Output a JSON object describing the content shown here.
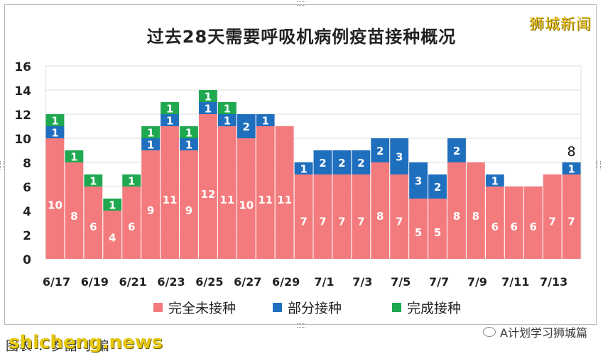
{
  "chart_data": {
    "type": "bar",
    "title": "过去28天需要呼吸机病例疫苗接种概况",
    "ylim": [
      0,
      16
    ],
    "yticks": [
      0,
      2,
      4,
      6,
      8,
      10,
      12,
      14,
      16
    ],
    "categories": [
      "6/17",
      "6/18",
      "6/19",
      "6/20",
      "6/21",
      "6/22",
      "6/23",
      "6/24",
      "6/25",
      "6/26",
      "6/27",
      "6/28",
      "6/29",
      "6/30",
      "7/1",
      "7/2",
      "7/3",
      "7/4",
      "7/5",
      "7/6",
      "7/7",
      "7/8",
      "7/9",
      "7/10",
      "7/11",
      "7/12",
      "7/13",
      "7/14"
    ],
    "xtick_labels": [
      "6/17",
      "",
      "6/19",
      "",
      "6/21",
      "",
      "6/23",
      "",
      "6/25",
      "",
      "6/27",
      "",
      "6/29",
      "",
      "7/1",
      "",
      "7/3",
      "",
      "7/5",
      "",
      "7/7",
      "",
      "7/9",
      "",
      "7/11",
      "",
      "7/13",
      ""
    ],
    "series": [
      {
        "name": "完全未接种",
        "color": "#f47b7d",
        "values": [
          10,
          8,
          6,
          4,
          6,
          9,
          11,
          9,
          12,
          11,
          10,
          11,
          11,
          7,
          7,
          7,
          7,
          8,
          7,
          5,
          5,
          8,
          8,
          6,
          6,
          6,
          7,
          7
        ]
      },
      {
        "name": "部分接种",
        "color": "#1f6fbf",
        "values": [
          1,
          0,
          0,
          0,
          0,
          1,
          1,
          1,
          1,
          1,
          2,
          1,
          0,
          1,
          2,
          2,
          2,
          2,
          3,
          3,
          2,
          2,
          0,
          1,
          0,
          0,
          0,
          1
        ]
      },
      {
        "name": "完成接种",
        "color": "#1fa84f",
        "values": [
          1,
          1,
          1,
          1,
          1,
          1,
          1,
          1,
          1,
          1,
          0,
          0,
          0,
          0,
          0,
          0,
          0,
          0,
          0,
          0,
          0,
          0,
          0,
          0,
          0,
          0,
          0,
          0
        ]
      }
    ],
    "annotations": [
      {
        "category": "7/14",
        "text": "8"
      }
    ],
    "grid": true,
    "legend_position": "bottom"
  },
  "brand": "狮城新闻",
  "wechat_account": "A计划学习狮城篇",
  "bottom_text": "图表 ：岁韶·小编",
  "watermark": "shicheng.news"
}
